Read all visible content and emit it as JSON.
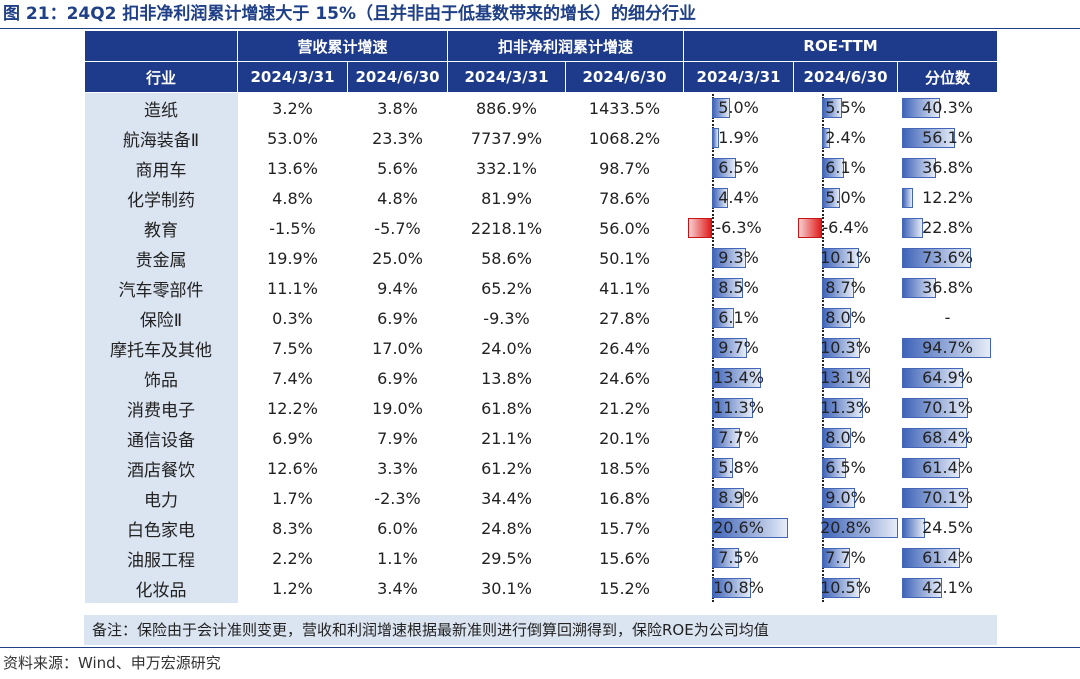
{
  "title": "图 21：24Q2 扣非净利润累计增速大于 15%（且并非由于低基数带来的增长）的细分行业",
  "note": "备注：保险由于会计准则变更，营收和利润增速根据最新准则进行倒算回溯得到，保险ROE为公司均值",
  "source": "资料来源：Wind、申万宏源研究",
  "colors": {
    "header_bg": "#1e3a8a",
    "row_label_bg": "#dbe4f1",
    "bar_pos": "#3f64b8",
    "bar_neg": "#e01c1c"
  },
  "chart_data": {
    "type": "table",
    "group_headers": [
      "营收累计增速",
      "扣非净利润累计增速",
      "ROE-TTM"
    ],
    "column_headers": [
      "行业",
      "2024/3/31",
      "2024/6/30",
      "2024/3/31",
      "2024/6/30",
      "2024/3/31",
      "2024/6/30",
      "分位数"
    ],
    "rows": [
      {
        "industry": "造纸",
        "rev_q1": "3.2%",
        "rev_q2": "3.8%",
        "np_q1": "886.9%",
        "np_q2": "1433.5%",
        "roe_q1": "5.0%",
        "roe_q2": "5.5%",
        "pct": "40.3%"
      },
      {
        "industry": "航海装备Ⅱ",
        "rev_q1": "53.0%",
        "rev_q2": "23.3%",
        "np_q1": "7737.9%",
        "np_q2": "1068.2%",
        "roe_q1": "1.9%",
        "roe_q2": "2.4%",
        "pct": "56.1%"
      },
      {
        "industry": "商用车",
        "rev_q1": "13.6%",
        "rev_q2": "5.6%",
        "np_q1": "332.1%",
        "np_q2": "98.7%",
        "roe_q1": "6.5%",
        "roe_q2": "6.1%",
        "pct": "36.8%"
      },
      {
        "industry": "化学制药",
        "rev_q1": "4.8%",
        "rev_q2": "4.8%",
        "np_q1": "81.9%",
        "np_q2": "78.6%",
        "roe_q1": "4.4%",
        "roe_q2": "5.0%",
        "pct": "12.2%"
      },
      {
        "industry": "教育",
        "rev_q1": "-1.5%",
        "rev_q2": "-5.7%",
        "np_q1": "2218.1%",
        "np_q2": "56.0%",
        "roe_q1": "-6.3%",
        "roe_q2": "-6.4%",
        "pct": "22.8%"
      },
      {
        "industry": "贵金属",
        "rev_q1": "19.9%",
        "rev_q2": "25.0%",
        "np_q1": "58.6%",
        "np_q2": "50.1%",
        "roe_q1": "9.3%",
        "roe_q2": "10.1%",
        "pct": "73.6%"
      },
      {
        "industry": "汽车零部件",
        "rev_q1": "11.1%",
        "rev_q2": "9.4%",
        "np_q1": "65.2%",
        "np_q2": "41.1%",
        "roe_q1": "8.5%",
        "roe_q2": "8.7%",
        "pct": "36.8%"
      },
      {
        "industry": "保险Ⅱ",
        "rev_q1": "0.3%",
        "rev_q2": "6.9%",
        "np_q1": "-9.3%",
        "np_q2": "27.8%",
        "roe_q1": "6.1%",
        "roe_q2": "8.0%",
        "pct": "-"
      },
      {
        "industry": "摩托车及其他",
        "rev_q1": "7.5%",
        "rev_q2": "17.0%",
        "np_q1": "24.0%",
        "np_q2": "26.4%",
        "roe_q1": "9.7%",
        "roe_q2": "10.3%",
        "pct": "94.7%"
      },
      {
        "industry": "饰品",
        "rev_q1": "7.4%",
        "rev_q2": "6.9%",
        "np_q1": "13.8%",
        "np_q2": "24.6%",
        "roe_q1": "13.4%",
        "roe_q2": "13.1%",
        "pct": "64.9%"
      },
      {
        "industry": "消费电子",
        "rev_q1": "12.2%",
        "rev_q2": "19.0%",
        "np_q1": "61.8%",
        "np_q2": "21.2%",
        "roe_q1": "11.3%",
        "roe_q2": "11.3%",
        "pct": "70.1%"
      },
      {
        "industry": "通信设备",
        "rev_q1": "6.9%",
        "rev_q2": "7.9%",
        "np_q1": "21.1%",
        "np_q2": "20.1%",
        "roe_q1": "7.7%",
        "roe_q2": "8.0%",
        "pct": "68.4%"
      },
      {
        "industry": "酒店餐饮",
        "rev_q1": "12.6%",
        "rev_q2": "3.3%",
        "np_q1": "61.2%",
        "np_q2": "18.5%",
        "roe_q1": "5.8%",
        "roe_q2": "6.5%",
        "pct": "61.4%"
      },
      {
        "industry": "电力",
        "rev_q1": "1.7%",
        "rev_q2": "-2.3%",
        "np_q1": "34.4%",
        "np_q2": "16.8%",
        "roe_q1": "8.9%",
        "roe_q2": "9.0%",
        "pct": "70.1%"
      },
      {
        "industry": "白色家电",
        "rev_q1": "8.3%",
        "rev_q2": "6.0%",
        "np_q1": "24.8%",
        "np_q2": "15.7%",
        "roe_q1": "20.6%",
        "roe_q2": "20.8%",
        "pct": "24.5%"
      },
      {
        "industry": "油服工程",
        "rev_q1": "2.2%",
        "rev_q2": "1.1%",
        "np_q1": "29.5%",
        "np_q2": "15.6%",
        "roe_q1": "7.5%",
        "roe_q2": "7.7%",
        "pct": "61.4%"
      },
      {
        "industry": "化妆品",
        "rev_q1": "1.2%",
        "rev_q2": "3.4%",
        "np_q1": "30.1%",
        "np_q2": "15.2%",
        "roe_q1": "10.8%",
        "roe_q2": "10.5%",
        "pct": "42.1%"
      }
    ]
  }
}
